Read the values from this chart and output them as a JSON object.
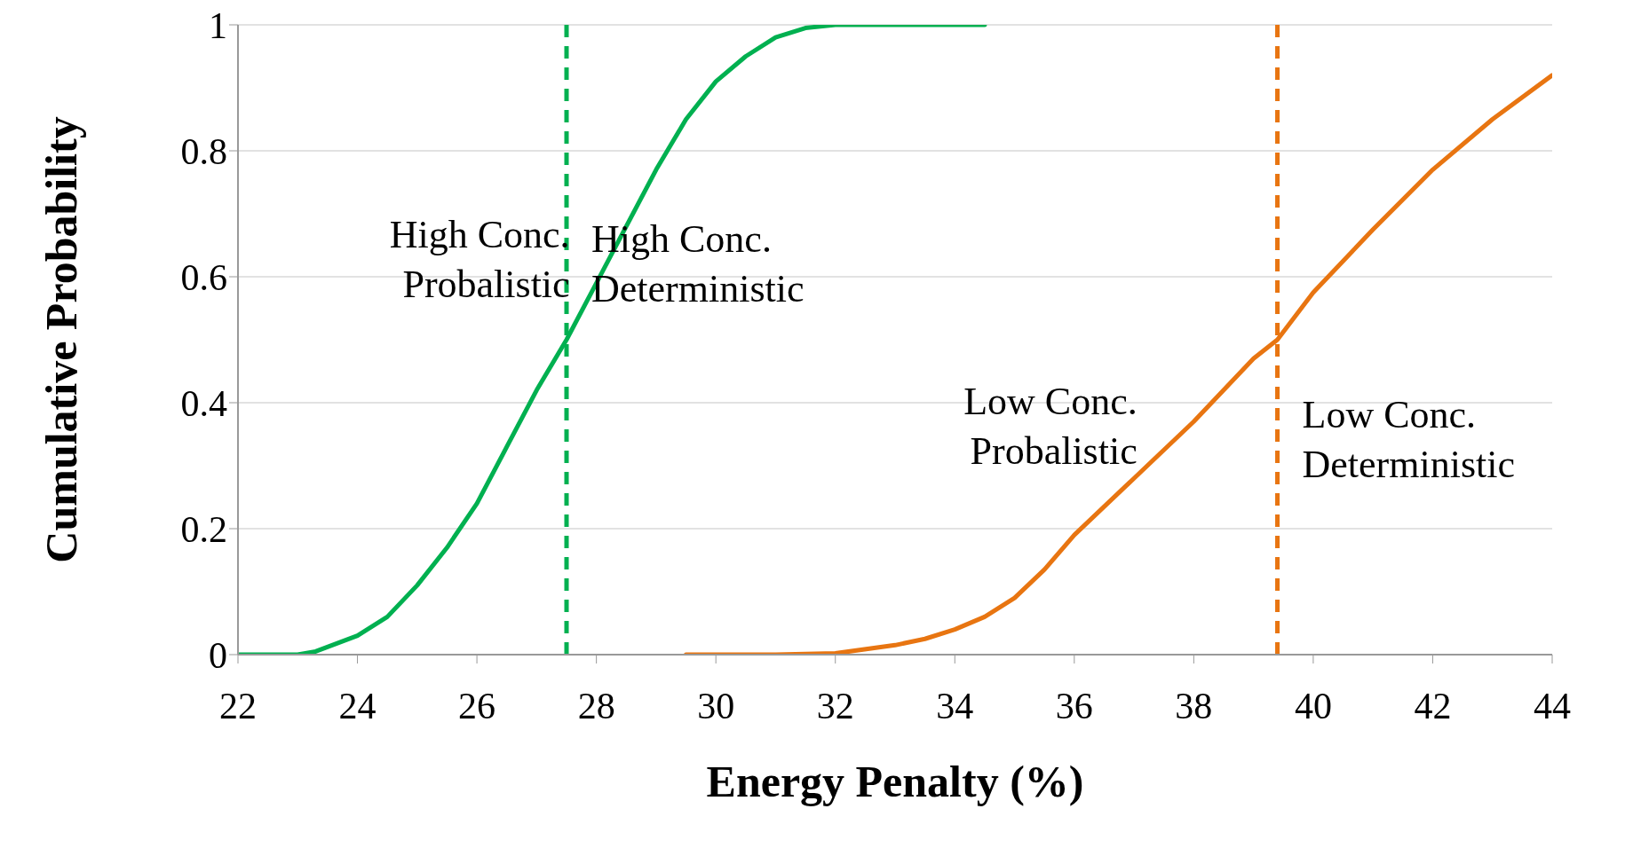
{
  "chart_data": {
    "type": "line",
    "xlabel": "Energy Penalty (%)",
    "ylabel": "Cumulative Probability",
    "xlim": [
      22,
      44
    ],
    "xticks": [
      22,
      24,
      26,
      28,
      30,
      32,
      34,
      36,
      38,
      40,
      42,
      44
    ],
    "ylim": [
      0,
      1
    ],
    "yticks": [
      0,
      0.2,
      0.4,
      0.6,
      0.8,
      1
    ],
    "grid": "y",
    "marker": "none",
    "line_style": "solid",
    "legend": false,
    "series": [
      {
        "name": "High Conc.\nProbalistic",
        "color": "#00b050",
        "x": [
          22,
          23,
          23.3,
          24,
          24.5,
          25,
          25.5,
          26,
          26.5,
          27,
          27.5,
          28,
          28.5,
          29,
          29.5,
          30,
          30.5,
          31,
          31.5,
          32,
          33,
          34.5
        ],
        "values": [
          0,
          0,
          0.005,
          0.03,
          0.06,
          0.11,
          0.17,
          0.24,
          0.33,
          0.42,
          0.5,
          0.59,
          0.68,
          0.77,
          0.85,
          0.91,
          0.95,
          0.98,
          0.995,
          1,
          1,
          1
        ]
      },
      {
        "name": "Low Conc.\nProbalistic",
        "color": "#e87511",
        "x": [
          29.5,
          31,
          32,
          33,
          33.5,
          34,
          34.5,
          35,
          35.5,
          36,
          36.5,
          37,
          37.5,
          38,
          38.5,
          39,
          39.4,
          40,
          41,
          42,
          43,
          44
        ],
        "values": [
          0,
          0,
          0.002,
          0.015,
          0.025,
          0.04,
          0.06,
          0.09,
          0.135,
          0.19,
          0.235,
          0.28,
          0.325,
          0.37,
          0.42,
          0.47,
          0.5,
          0.575,
          0.675,
          0.77,
          0.85,
          0.92
        ]
      }
    ],
    "ref_lines": [
      {
        "axis": "x",
        "value": 27.5,
        "color": "#00b050",
        "line_style": "dashed",
        "label": "High Conc.\nDeterministic"
      },
      {
        "axis": "x",
        "value": 39.4,
        "color": "#e87511",
        "line_style": "dashed",
        "label": "Low Conc.\nDeterministic"
      }
    ]
  }
}
